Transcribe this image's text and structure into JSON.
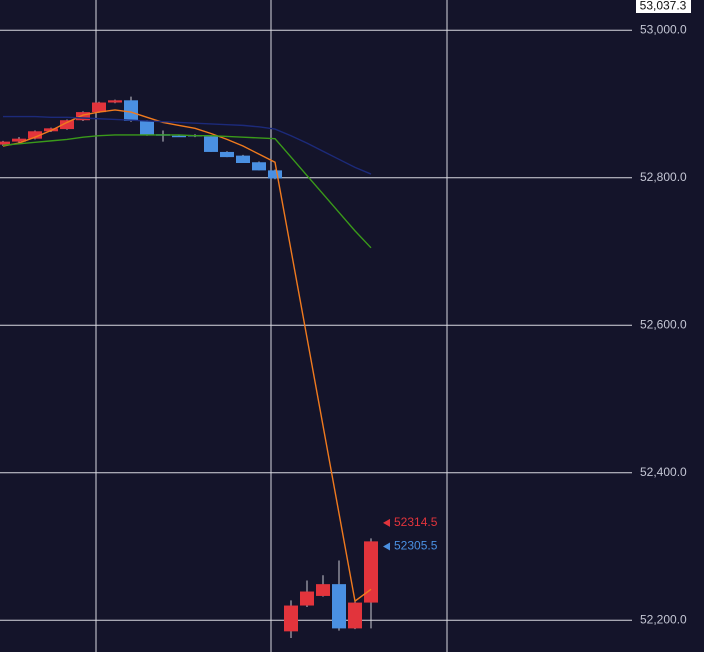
{
  "chart_data": {
    "type": "candlestick",
    "up_color": "#e2343c",
    "down_color": "#4a90e2",
    "ylim": [
      52157,
      53041
    ],
    "yticks": [
      {
        "value": 52200,
        "label": "52,200.0"
      },
      {
        "value": 52400,
        "label": "52,400.0"
      },
      {
        "value": 52600,
        "label": "52,600.0"
      },
      {
        "value": 52800,
        "label": "52,800.0"
      },
      {
        "value": 53000,
        "label": "53,000.0"
      }
    ],
    "grid": true,
    "crosshair_price": {
      "value": 53037.3,
      "label": "53,037.3"
    },
    "open": [
      52845,
      52849,
      52853,
      52863,
      52866,
      52878,
      52889,
      52902,
      52905,
      52877,
      52859,
      52857,
      52858,
      52856,
      52835,
      52830,
      52821,
      52810,
      52185,
      52220,
      52233,
      52249,
      52189,
      52224
    ],
    "high": [
      52850,
      52855,
      52864,
      52868,
      52879,
      52890,
      52903,
      52906,
      52910,
      52878,
      52864,
      52858,
      52859,
      52857,
      52836,
      52831,
      52822,
      52811,
      52227,
      52254,
      52261,
      52281,
      52226,
      52311
    ],
    "low": [
      52843,
      52847,
      52852,
      52862,
      52865,
      52877,
      52888,
      52901,
      52876,
      52857,
      52849,
      52856,
      52855,
      52835,
      52828,
      52820,
      52810,
      52798,
      52176,
      52218,
      52232,
      52186,
      52188,
      52189
    ],
    "close": [
      52849,
      52853,
      52863,
      52867,
      52878,
      52889,
      52902,
      52905,
      52877,
      52858,
      52858,
      52856,
      52856,
      52835,
      52828,
      52820,
      52810,
      52799,
      52220,
      52239,
      52249,
      52189,
      52224,
      52307
    ],
    "series": [
      {
        "color": "#f07a1e",
        "values": [
          52843,
          52847,
          52855,
          52864,
          52875,
          52885,
          52889,
          52892,
          52889,
          52882,
          52875,
          52871,
          52867,
          52860,
          52852,
          52843,
          52832,
          52821,
          52702,
          52583,
          52464,
          52345,
          52226,
          52242
        ]
      },
      {
        "color": "#3a9a1a",
        "values": [
          52844,
          52846,
          52848,
          52850,
          52852,
          52855,
          52857,
          52858,
          52858,
          52858,
          52858,
          52858,
          52857,
          52857,
          52856,
          52855,
          52854,
          52853,
          52828,
          52803,
          52778,
          52753,
          52728,
          52705
        ]
      },
      {
        "color": "#1c2a7a",
        "values": [
          52883,
          52883,
          52883,
          52882,
          52882,
          52881,
          52880,
          52879,
          52878,
          52877,
          52876,
          52875,
          52874,
          52873,
          52872,
          52871,
          52869,
          52866,
          52857,
          52847,
          52836,
          52825,
          52814,
          52805
        ]
      }
    ],
    "last_prices": [
      {
        "value": 52314.5,
        "color": "#e2343c"
      },
      {
        "value": 52305.5,
        "color": "#4a90e2"
      }
    ]
  }
}
